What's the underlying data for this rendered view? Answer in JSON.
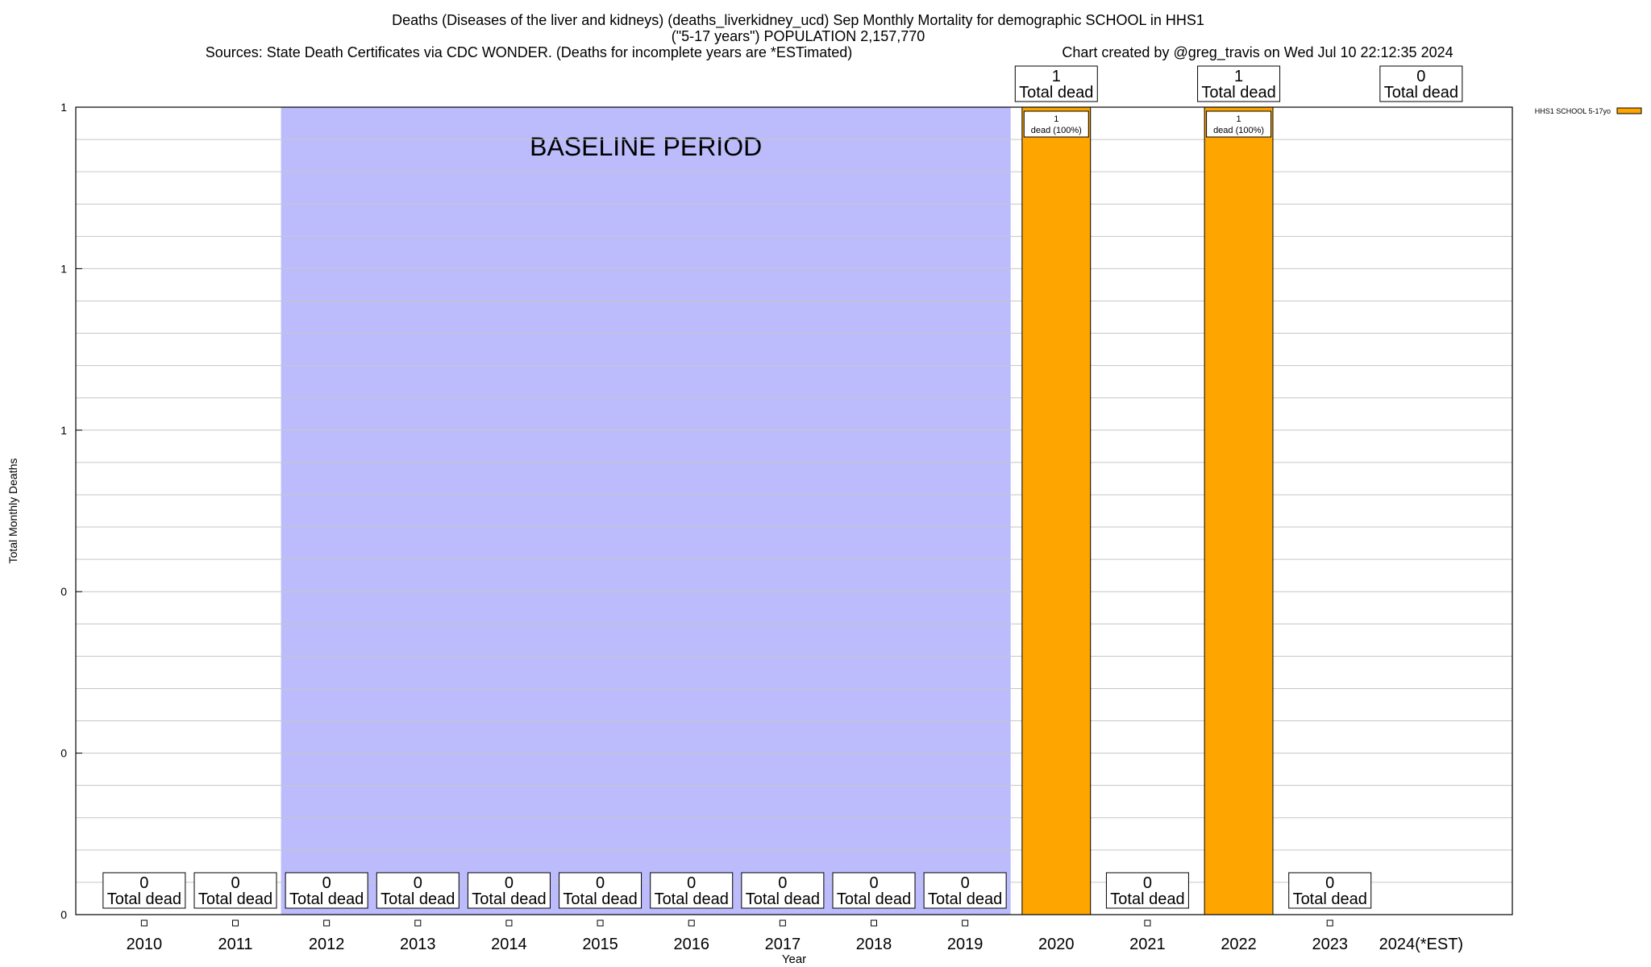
{
  "chart_data": {
    "type": "bar",
    "title_lines": [
      "Deaths (Diseases of the liver and kidneys) (deaths_liverkidney_ucd) Sep Monthly Mortality for demographic SCHOOL in HHS1",
      "(\"5-17 years\") POPULATION 2,157,770"
    ],
    "sources": "Sources: State Death Certificates via CDC WONDER. (Deaths for incomplete years are *ESTimated)",
    "credit": "Chart created by @greg_travis on Wed Jul 10 22:12:35 2024",
    "xlabel": "Year",
    "ylabel": "Total Monthly Deaths",
    "categories": [
      "2010",
      "2011",
      "2012",
      "2013",
      "2014",
      "2015",
      "2016",
      "2017",
      "2018",
      "2019",
      "2020",
      "2021",
      "2022",
      "2023",
      "2024(*EST)"
    ],
    "series": [
      {
        "name": "HHS1 SCHOOL 5-17yo",
        "color": "#ffa500",
        "values": [
          0,
          0,
          0,
          0,
          0,
          0,
          0,
          0,
          0,
          0,
          1,
          0,
          1,
          0,
          0
        ]
      }
    ],
    "total_labels": [
      "0",
      "0",
      "0",
      "0",
      "0",
      "0",
      "0",
      "0",
      "0",
      "0",
      "1",
      "0",
      "1",
      "0",
      "0"
    ],
    "total_label_caption": "Total dead",
    "bar_labels": [
      "1",
      "dead (100%)"
    ],
    "ylim": [
      0,
      1
    ],
    "yticks": [
      {
        "value": 0,
        "label": "0"
      },
      {
        "value": 0.2,
        "label": "0"
      },
      {
        "value": 0.4,
        "label": "0"
      },
      {
        "value": 0.6,
        "label": "1"
      },
      {
        "value": 0.8,
        "label": "1"
      },
      {
        "value": 1.0,
        "label": "1"
      }
    ],
    "baseline": {
      "label": "BASELINE PERIOD",
      "start": "2012",
      "end": "2019",
      "color": "#bcbcfc"
    },
    "grid": true,
    "legend": "top-right",
    "bar_color": "#ffa500"
  }
}
